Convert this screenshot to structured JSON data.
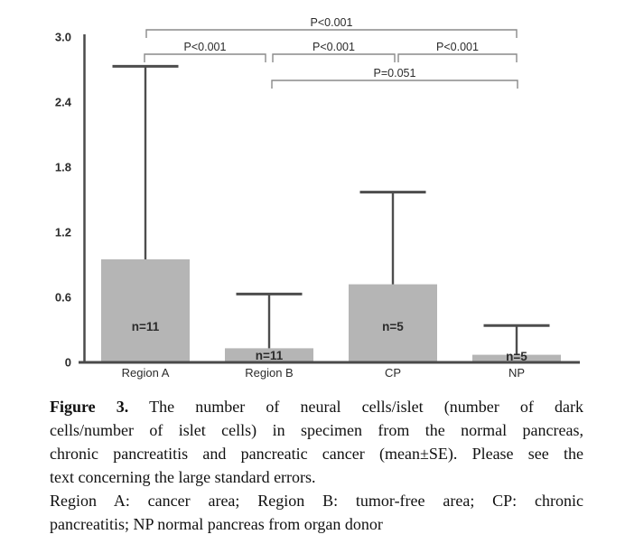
{
  "chart_data": {
    "type": "bar",
    "title": "",
    "xlabel": "",
    "ylabel": "",
    "categories": [
      "Region A",
      "Region B",
      "CP",
      "NP"
    ],
    "values": [
      0.95,
      0.13,
      0.72,
      0.07
    ],
    "error_upper_se": [
      1.78,
      0.5,
      0.85,
      0.27
    ],
    "error_bar_tops": [
      2.73,
      0.63,
      1.57,
      0.34
    ],
    "bar_n_labels": [
      "n=11",
      "n=11",
      "n=5",
      "n=5"
    ],
    "ylim": [
      0,
      3.0
    ],
    "yticks": [
      {
        "value": 0,
        "label": "0"
      },
      {
        "value": 0.6,
        "label": "0.6"
      },
      {
        "value": 1.2,
        "label": "1.2"
      },
      {
        "value": 1.8,
        "label": "1.8"
      },
      {
        "value": 2.4,
        "label": "2.4"
      },
      {
        "value": 3.0,
        "label": "3.0"
      }
    ],
    "grid": false,
    "legend": false,
    "error_bars": "upper only, mean+SE",
    "brackets": [
      {
        "from": 0,
        "to": 3,
        "label": "P<0.001",
        "row": 0,
        "dx1": 1,
        "dx2": 0
      },
      {
        "from": 0,
        "to": 1,
        "label": "P<0.001",
        "row": 1,
        "dx1": -1,
        "dx2": -4
      },
      {
        "from": 1,
        "to": 2,
        "label": "P<0.001",
        "row": 1,
        "dx1": 4,
        "dx2": 2
      },
      {
        "from": 2,
        "to": 3,
        "label": "P<0.001",
        "row": 1,
        "dx1": 6,
        "dx2": 0
      },
      {
        "from": 1,
        "to": 3,
        "label": "P=0.051",
        "row": 2,
        "dx1": 3,
        "dx2": 1
      }
    ]
  },
  "colors": {
    "bar_fill": "#b5b5b5",
    "axis_line": "#4a4a4a",
    "error_line": "#4d4d4d",
    "bracket_line": "#8a8a8a",
    "chart_text": "#2b2b2b",
    "caption_text": "#111111"
  },
  "caption": {
    "lines": [
      {
        "bold": "Figure 3.",
        "text": " The number of neural cells/islet (number of dark",
        "justify": true
      },
      {
        "text": "cells/number of islet cells) in specimen from the normal pancreas,",
        "justify": true
      },
      {
        "text": "chronic pancreatitis and pancreatic cancer (mean±SE). Please see the",
        "justify": true
      },
      {
        "text": "text concerning the large standard errors.",
        "justify": false
      },
      {
        "text": "Region A: cancer area; Region B: tumor-free area; CP: chronic",
        "justify": true
      },
      {
        "text": "pancreatitis; NP normal pancreas from organ donor",
        "justify": false
      }
    ]
  }
}
